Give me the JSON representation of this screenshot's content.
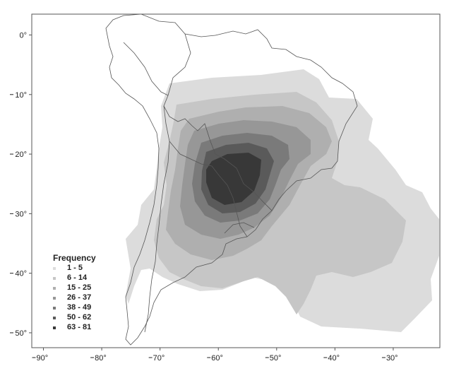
{
  "map": {
    "x_ticks": [
      {
        "value": -90,
        "label": "90°"
      },
      {
        "value": -80,
        "label": "80°"
      },
      {
        "value": -70,
        "label": "70°"
      },
      {
        "value": -60,
        "label": "60°"
      },
      {
        "value": -50,
        "label": "50°"
      },
      {
        "value": -40,
        "label": "40°"
      },
      {
        "value": -30,
        "label": "30°"
      }
    ],
    "y_ticks": [
      {
        "value": 0,
        "label": "0°"
      },
      {
        "value": -10,
        "label": "10°"
      },
      {
        "value": -20,
        "label": "20°"
      },
      {
        "value": -30,
        "label": "30°"
      },
      {
        "value": -40,
        "label": "40°"
      },
      {
        "value": -50,
        "label": "50°"
      }
    ],
    "lon_range": [
      -92,
      -22
    ],
    "lat_range": [
      3.5,
      -52.5
    ]
  },
  "legend": {
    "title": "Frequency",
    "placement": "bottom-left",
    "items": [
      {
        "label": "1 - 5",
        "color": "#dcdcdc"
      },
      {
        "label": "6 - 14",
        "color": "#c6c6c6"
      },
      {
        "label": "15 - 25",
        "color": "#afafaf"
      },
      {
        "label": "26 - 37",
        "color": "#979797"
      },
      {
        "label": "38 - 49",
        "color": "#7a7a7a"
      },
      {
        "label": "50 - 62",
        "color": "#5a5a5a"
      },
      {
        "label": "63 - 81",
        "color": "#383838"
      }
    ]
  },
  "colors": {
    "coastline": "#555555",
    "frame": "#555555"
  }
}
